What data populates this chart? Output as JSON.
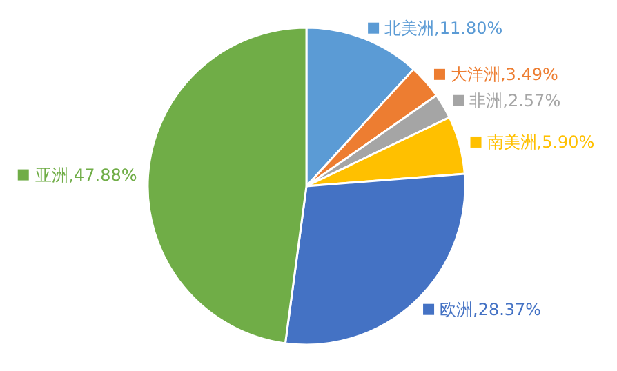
{
  "chart_data": {
    "type": "pie",
    "categories": [
      "北美洲",
      "大洋洲",
      "非洲",
      "南美洲",
      "欧洲",
      "亚洲"
    ],
    "values": [
      11.8,
      3.49,
      2.57,
      5.9,
      28.37,
      47.88
    ],
    "value_labels": [
      "11.80%",
      "3.49%",
      "2.57%",
      "5.90%",
      "28.37%",
      "47.88%"
    ],
    "colors": [
      "#5b9bd5",
      "#ed7d31",
      "#a5a5a5",
      "#ffc000",
      "#4472c4",
      "#70ad47"
    ],
    "legend": "right"
  }
}
